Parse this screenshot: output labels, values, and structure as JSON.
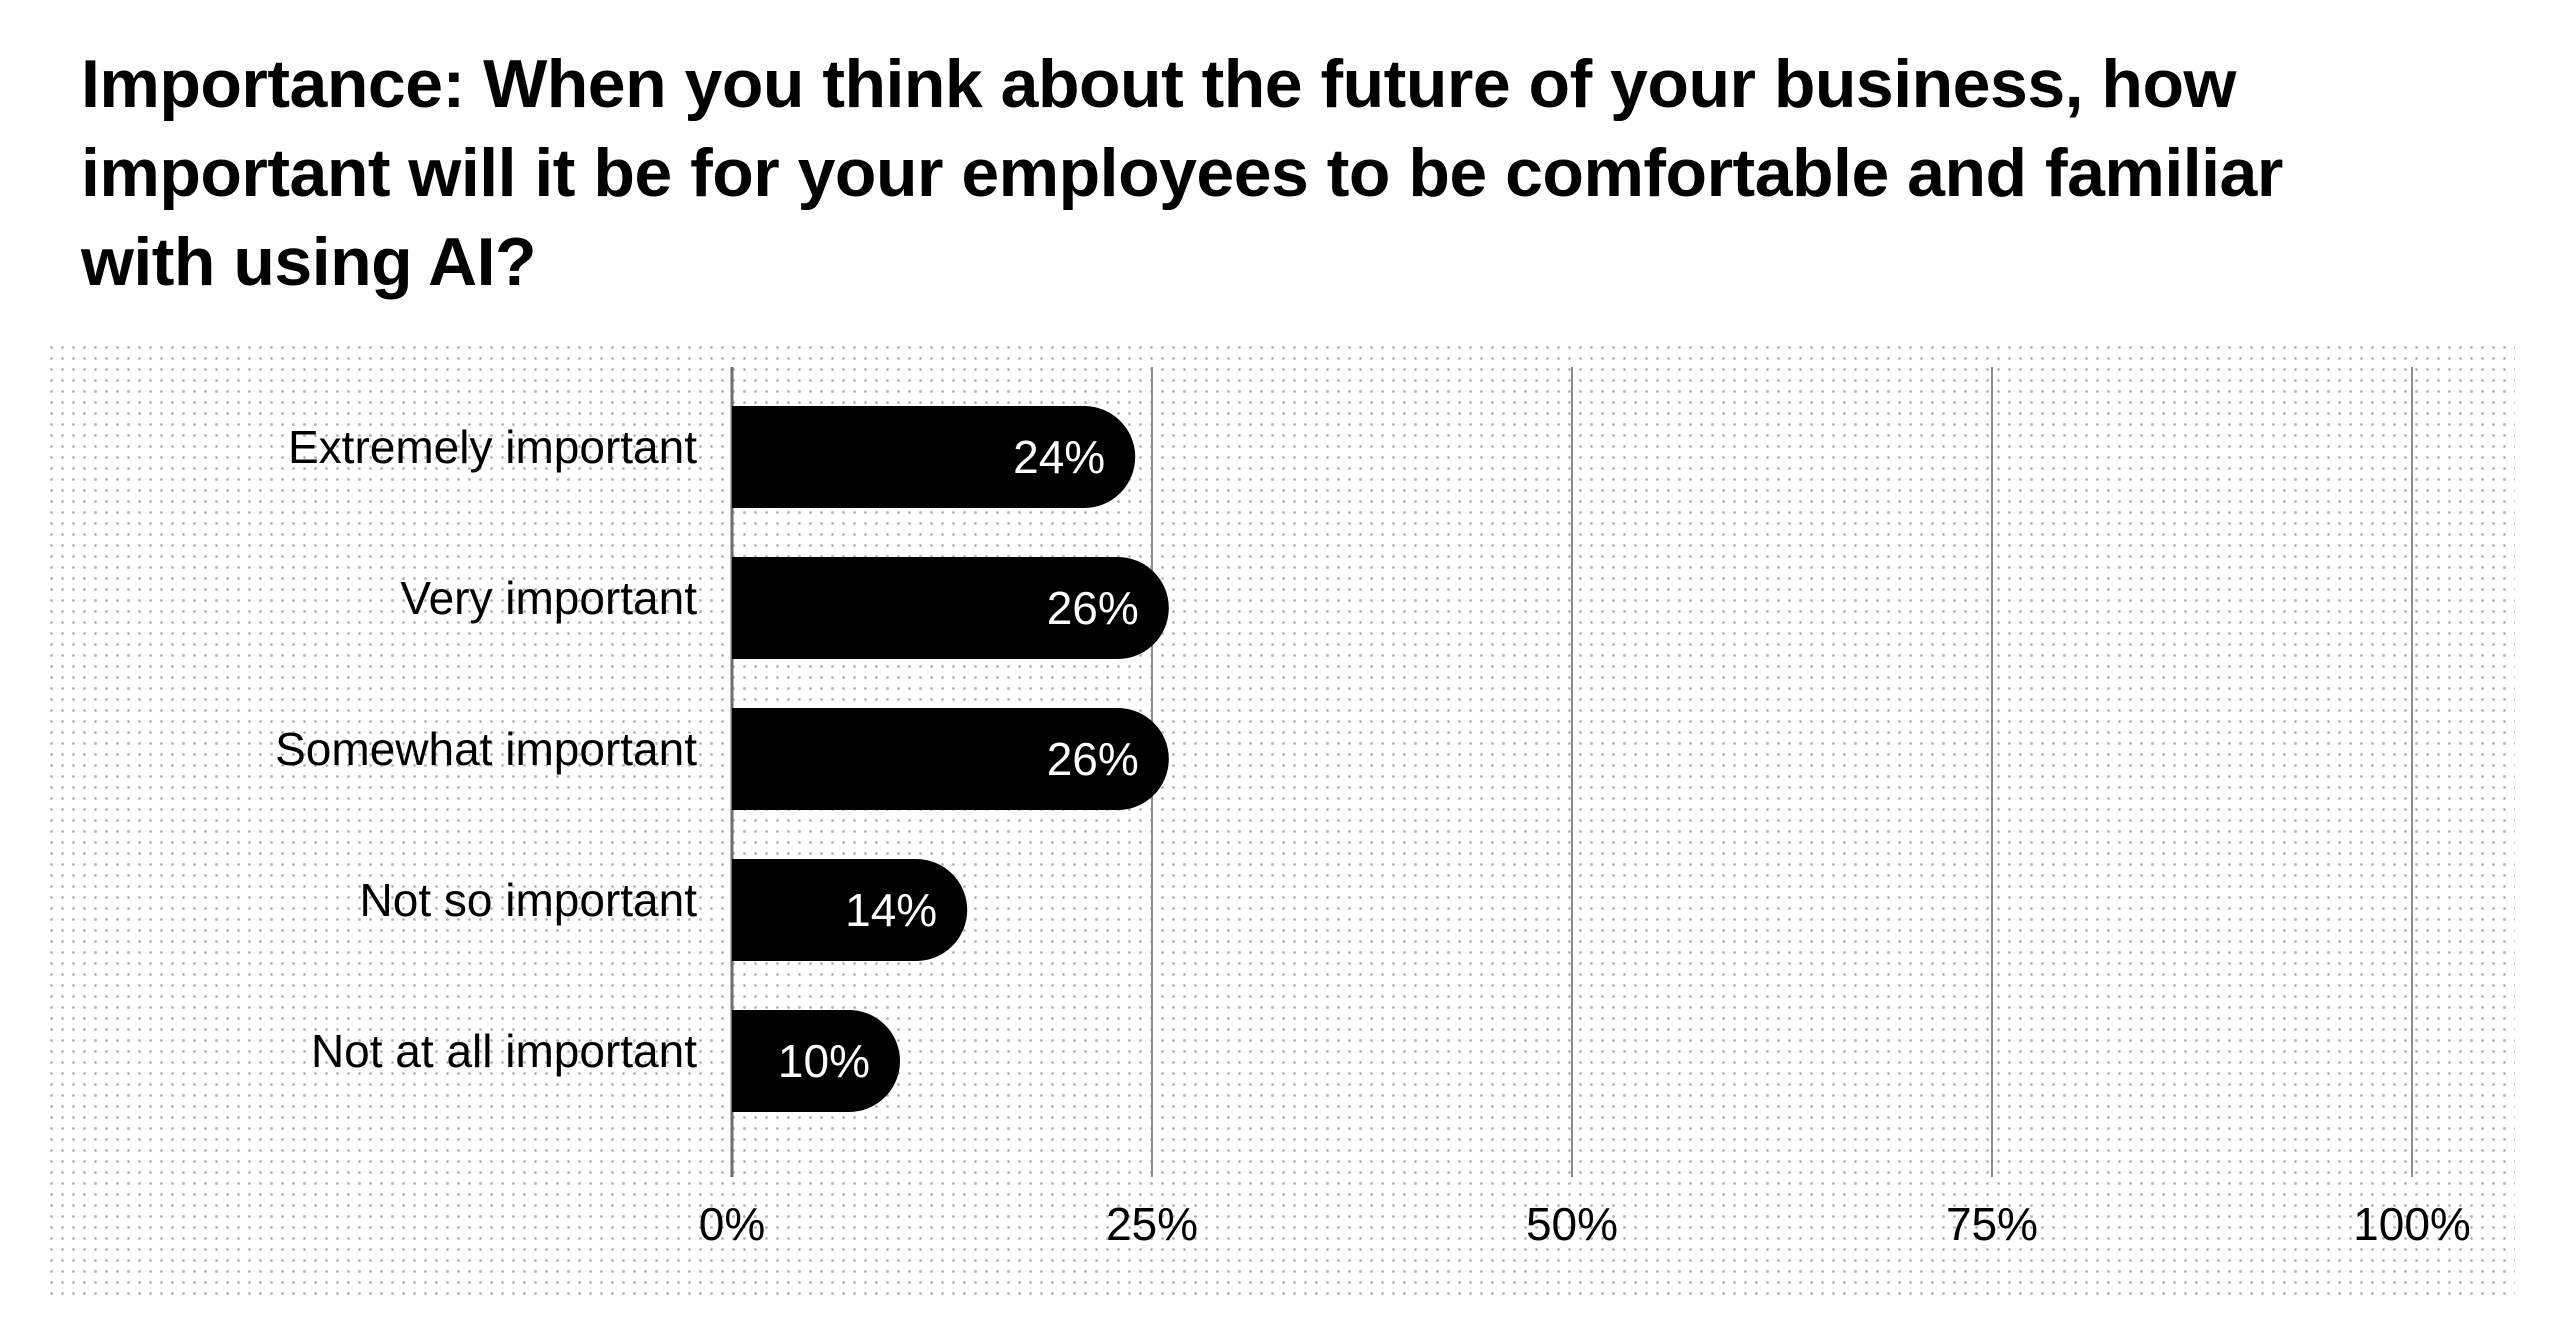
{
  "chart_data": {
    "type": "bar",
    "orientation": "horizontal",
    "title": "Importance: When you think about the future of your business, how important will it be for your employees to be comfortable and familiar with using AI?",
    "categories": [
      "Extremely important",
      "Very important",
      "Somewhat important",
      "Not so important",
      "Not at all important"
    ],
    "values": [
      24,
      26,
      26,
      14,
      10
    ],
    "value_labels": [
      "24%",
      "26%",
      "26%",
      "14%",
      "10%"
    ],
    "xlim": [
      0,
      100
    ],
    "x_ticks": [
      0,
      25,
      50,
      75,
      100
    ],
    "x_tick_labels": [
      "0%",
      "25%",
      "50%",
      "75%",
      "100%"
    ],
    "xlabel": "",
    "ylabel": "",
    "grid": true,
    "legend": "none",
    "colors": {
      "bar": "#000000",
      "bar_label": "#ffffff",
      "gridline": "#8c8c8c",
      "axis_line": "#6e6e6e",
      "panel_dots": "#b3b3b3"
    }
  }
}
